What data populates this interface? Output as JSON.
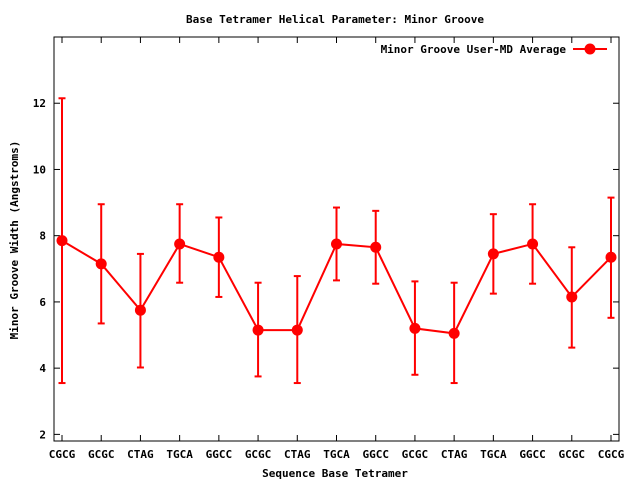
{
  "chart_data": {
    "type": "line",
    "title": "Base Tetramer Helical Parameter: Minor Groove",
    "xlabel": "Sequence Base Tetramer",
    "ylabel": "Minor Groove Width (Angstroms)",
    "ylim": [
      1.8,
      14.0
    ],
    "yticks": [
      2,
      4,
      6,
      8,
      10,
      12
    ],
    "categories": [
      "CGCG",
      "GCGC",
      "CTAG",
      "TGCA",
      "GGCC",
      "GCGC",
      "CTAG",
      "TGCA",
      "GGCC",
      "GCGC",
      "CTAG",
      "TGCA",
      "GGCC",
      "GCGC",
      "CGCG"
    ],
    "legend_position": "top-right",
    "grid": false,
    "series": [
      {
        "name": "Minor Groove User-MD Average",
        "color": "#ff0000",
        "values": [
          7.85,
          7.15,
          5.75,
          7.75,
          7.35,
          5.15,
          5.15,
          7.75,
          7.65,
          5.2,
          5.05,
          7.45,
          7.75,
          6.15,
          7.35
        ],
        "err_low": [
          3.55,
          5.35,
          4.02,
          6.58,
          6.15,
          3.75,
          3.55,
          6.65,
          6.55,
          3.8,
          3.55,
          6.25,
          6.55,
          4.62,
          5.52
        ],
        "err_high": [
          12.15,
          8.95,
          7.45,
          8.95,
          8.55,
          6.58,
          6.78,
          8.85,
          8.75,
          6.62,
          6.58,
          8.65,
          8.95,
          7.65,
          9.15
        ]
      }
    ]
  }
}
